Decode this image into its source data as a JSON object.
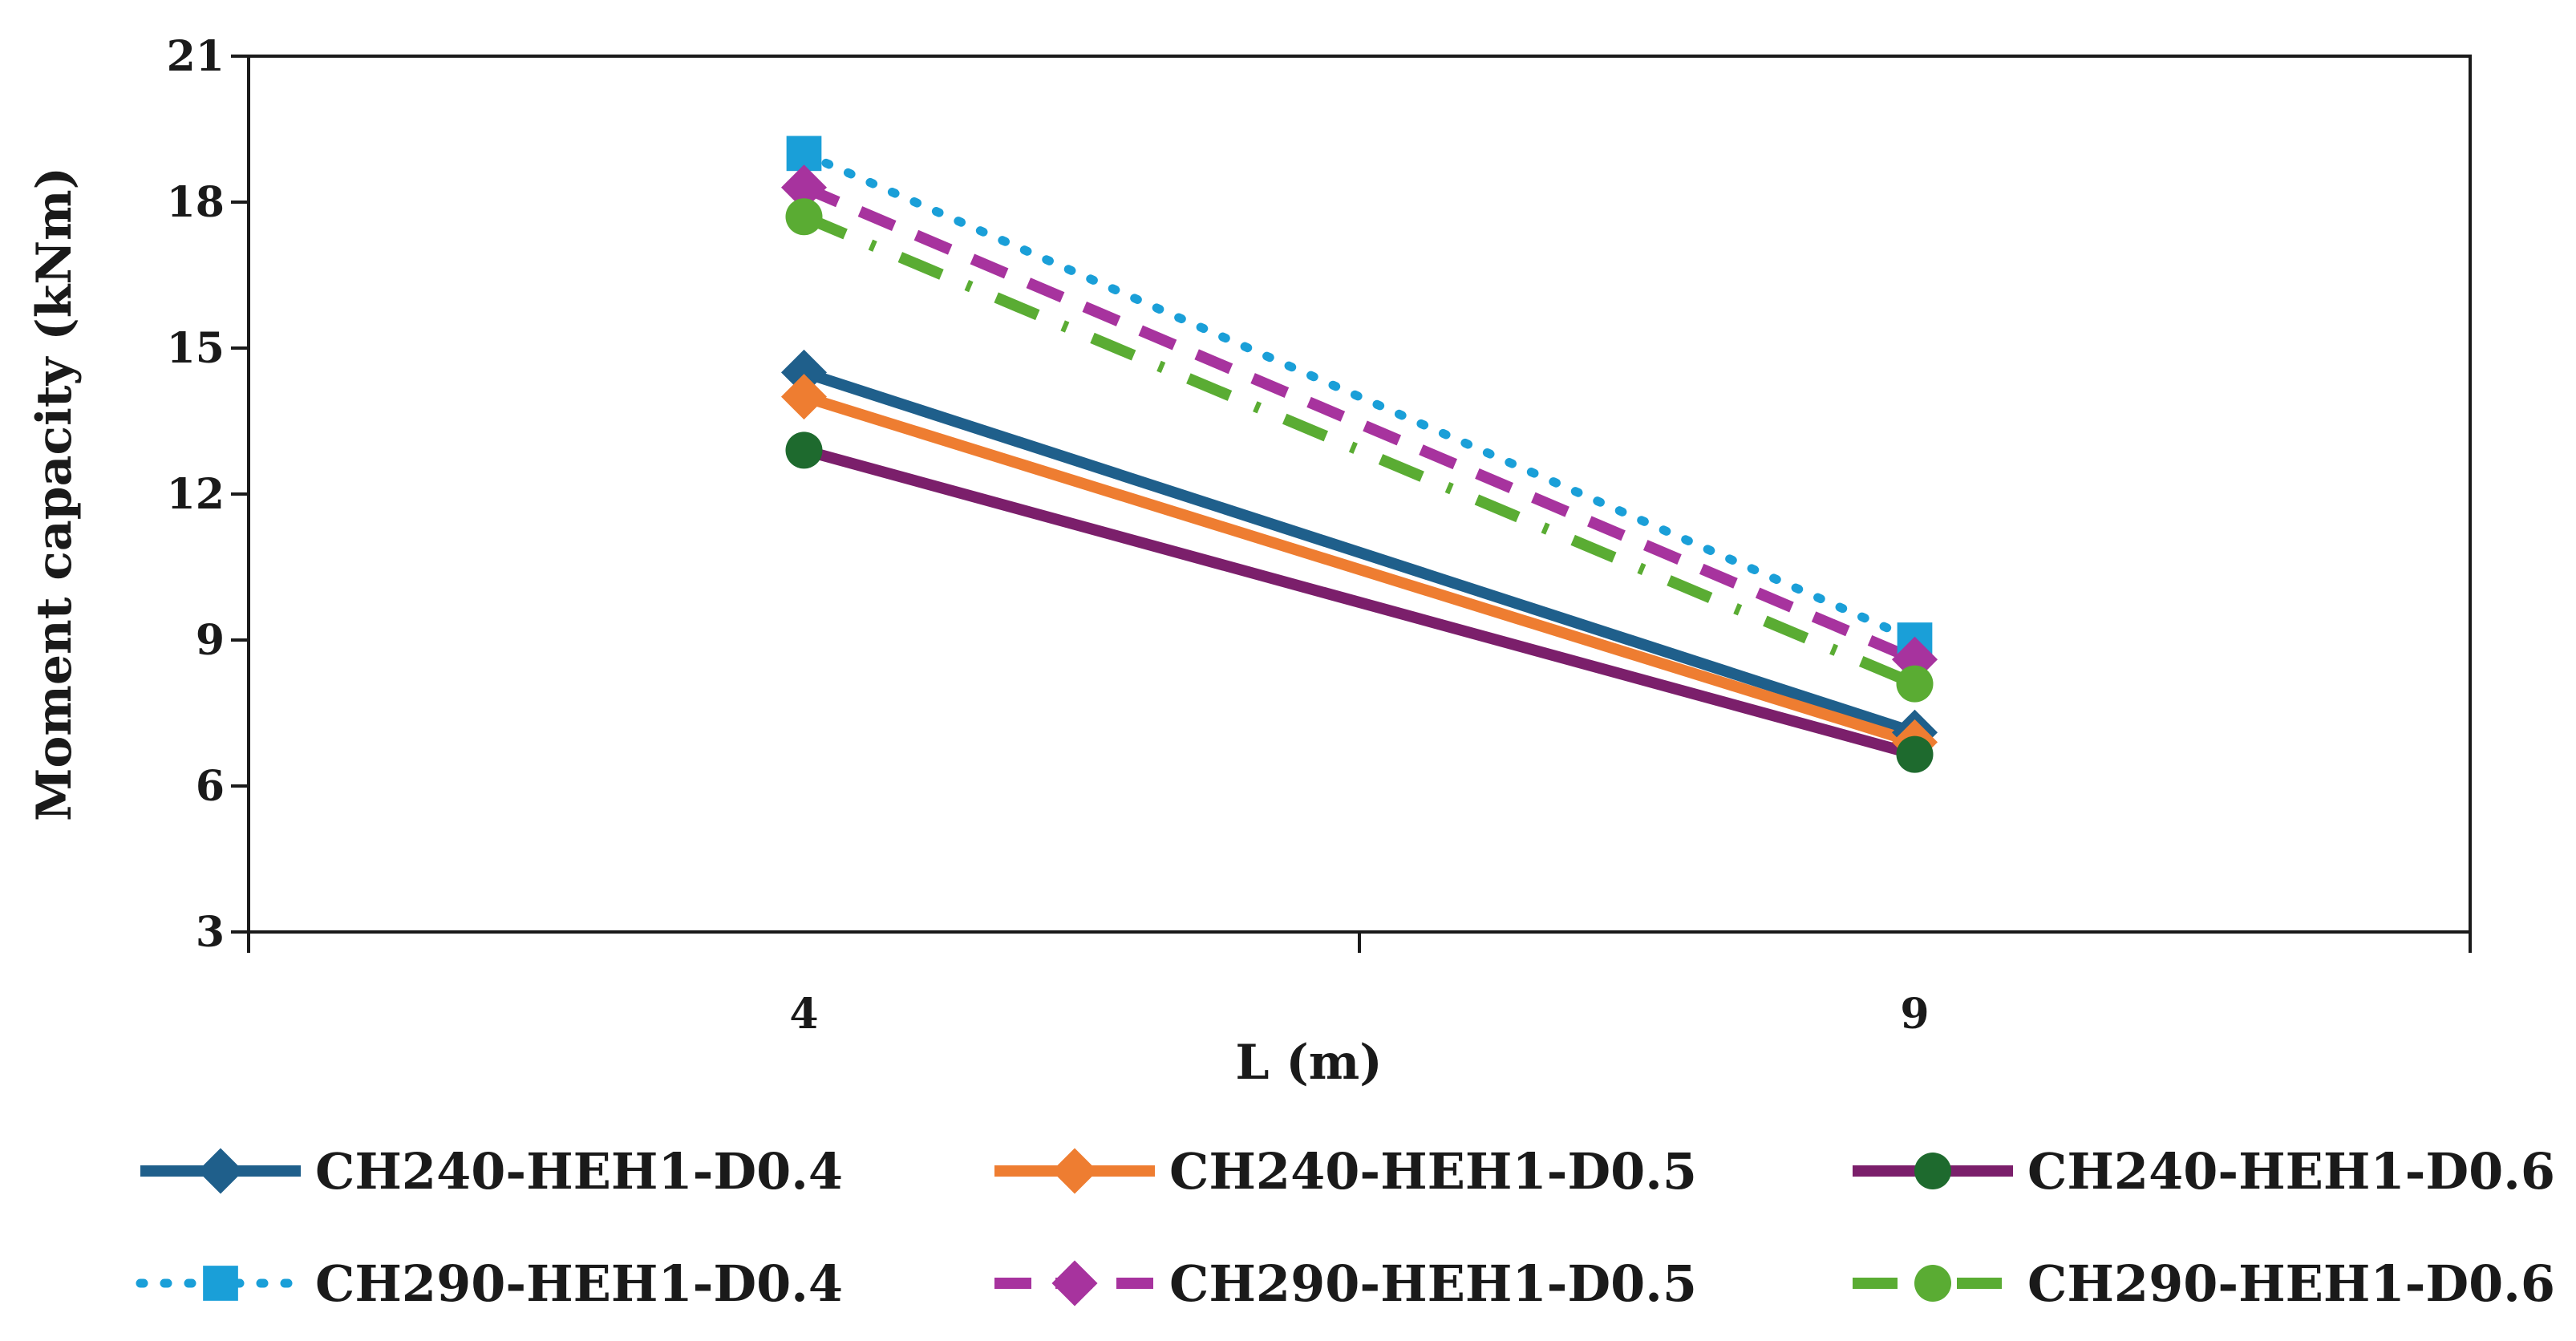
{
  "chart_data": {
    "type": "line",
    "title": "",
    "xlabel": "L (m)",
    "ylabel": "Moment capacity (kNm)",
    "categories": [
      "4",
      "9"
    ],
    "ylim": [
      3,
      21
    ],
    "yticks": [
      3,
      6,
      9,
      12,
      15,
      18,
      21
    ],
    "grid": false,
    "legend_position": "bottom",
    "series": [
      {
        "name": "CH240-HEH1-D0.4",
        "values": [
          14.5,
          7.1
        ],
        "color": "#1f5f8b",
        "dash": "solid",
        "marker": "diamond"
      },
      {
        "name": "CH240-HEH1-D0.5",
        "values": [
          14.0,
          6.9
        ],
        "color": "#ee7d31",
        "dash": "solid",
        "marker": "diamond"
      },
      {
        "name": "CH240-HEH1-D0.6",
        "values": [
          12.9,
          6.65
        ],
        "color": "#7b1f6b",
        "dash": "solid",
        "marker": "circle",
        "marker_color": "#1e6a2e"
      },
      {
        "name": "CH290-HEH1-D0.4",
        "values": [
          19.0,
          9.0
        ],
        "color": "#1a9fd8",
        "dash": "dot",
        "marker": "square"
      },
      {
        "name": "CH290-HEH1-D0.5",
        "values": [
          18.3,
          8.6
        ],
        "color": "#a7339e",
        "dash": "dash",
        "marker": "diamond"
      },
      {
        "name": "CH290-HEH1-D0.6",
        "values": [
          17.7,
          8.1
        ],
        "color": "#5aac33",
        "dash": "dashdot",
        "marker": "circle"
      }
    ]
  }
}
